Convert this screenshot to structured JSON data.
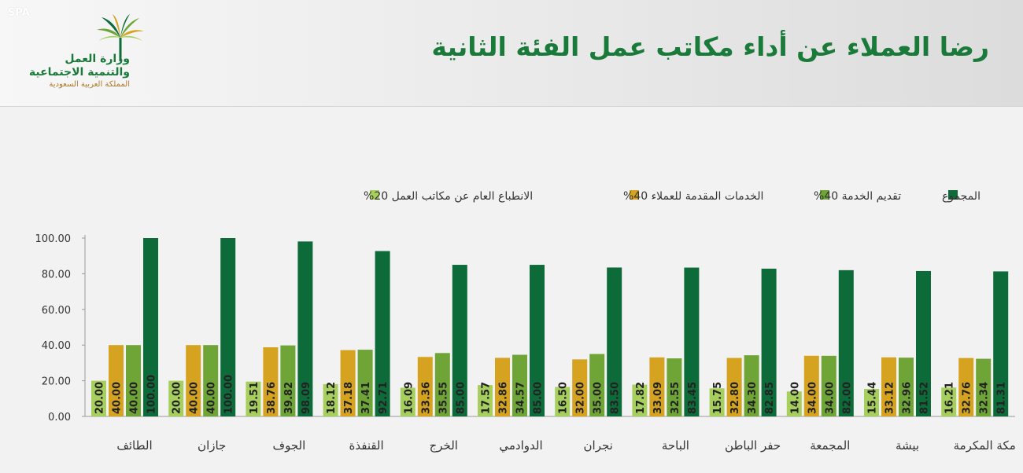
{
  "header": {
    "agency": "SPA",
    "title": "رضا العملاء عن أداء مكاتب عمل الفئة الثانية",
    "ministry_line1": "وزارة العمل",
    "ministry_line2": "والتنمية الاجتماعية",
    "ministry_line3": "المملكة العربية السعودية"
  },
  "colors": {
    "total": "#0d6b3a",
    "service": "#6fa536",
    "client_services": "#d6a321",
    "impression": "#a6cf5e",
    "title": "#1a7a3a"
  },
  "chart_data": {
    "type": "bar",
    "title": "رضا العملاء عن أداء مكاتب عمل الفئة الثانية",
    "xlabel": "",
    "ylabel": "",
    "ylim": [
      0,
      100
    ],
    "y_ticks": [
      "0.00",
      "20.00",
      "40.00",
      "60.00",
      "80.00",
      "100.00"
    ],
    "grid": false,
    "legend_position": "top",
    "categories": [
      "الطائف",
      "جازان",
      "الجوف",
      "القنفذة",
      "الخرج",
      "الدوادمي",
      "نجران",
      "الباحة",
      "حفر الباطن",
      "المجمعة",
      "بيشة",
      "مكة المكرمة"
    ],
    "series": [
      {
        "name": "الانطباع العام عن مكاتب العمل 20%",
        "color": "#a6cf5e",
        "values": [
          20.0,
          20.0,
          19.51,
          18.12,
          16.09,
          17.57,
          16.5,
          17.82,
          15.75,
          14.0,
          15.44,
          16.21
        ],
        "labels": [
          "20.00",
          "20.00",
          "19.51",
          "18.12",
          "16.09",
          "17.57",
          "16.50",
          "17.82",
          "15.75",
          "14.00",
          "15.44",
          "16.21"
        ]
      },
      {
        "name": "الخدمات المقدمة للعملاء 40%",
        "color": "#d6a321",
        "values": [
          40.0,
          40.0,
          38.76,
          37.18,
          33.36,
          32.86,
          32.0,
          33.09,
          32.8,
          34.0,
          33.12,
          32.76
        ],
        "labels": [
          "40.00",
          "40.00",
          "38.76",
          "37.18",
          "33.36",
          "32.86",
          "32.00",
          "33.09",
          "32.80",
          "34.00",
          "33.12",
          "32.76"
        ]
      },
      {
        "name": "تقديم الخدمة 40%",
        "color": "#6fa536",
        "values": [
          40.0,
          40.0,
          39.82,
          37.41,
          35.55,
          34.57,
          35.0,
          32.55,
          34.3,
          34.0,
          32.96,
          32.34
        ],
        "labels": [
          "40.00",
          "40.00",
          "39.82",
          "37.41",
          "35.55",
          "34.57",
          "35.00",
          "32.55",
          "34.30",
          "34.00",
          "32.96",
          "32.34"
        ]
      },
      {
        "name": "المجموع",
        "color": "#0d6b3a",
        "values": [
          100.0,
          100.0,
          98.09,
          92.71,
          85.0,
          85.0,
          83.5,
          83.45,
          82.85,
          82.0,
          81.52,
          81.31
        ],
        "labels": [
          "100.00",
          "100.00",
          "98.09",
          "92.71",
          "85.00",
          "85.00",
          "83.50",
          "83.45",
          "82.85",
          "82.00",
          "81.52",
          "81.31"
        ]
      }
    ]
  }
}
